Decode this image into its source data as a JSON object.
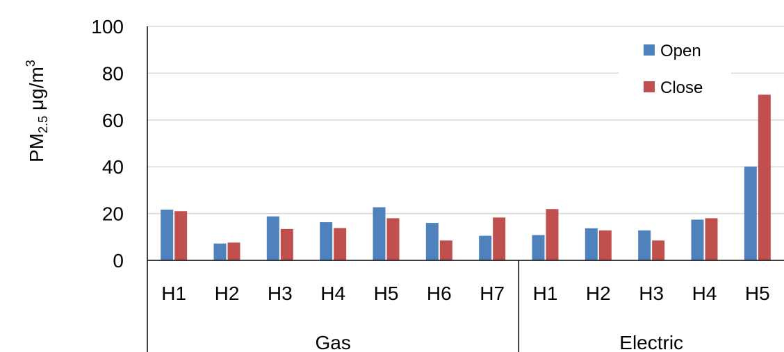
{
  "chart_data": {
    "type": "bar",
    "ylabel": {
      "main": "PM",
      "sub": "2.5",
      "unit": " μg/m",
      "sup": "3"
    },
    "ylim": [
      0,
      100
    ],
    "yticks": [
      0,
      20,
      40,
      60,
      80,
      100
    ],
    "grid": true,
    "legend_position": "top-right",
    "groups": [
      {
        "label": "Gas",
        "categories": [
          "H1",
          "H2",
          "H3",
          "H4",
          "H5",
          "H6",
          "H7"
        ]
      },
      {
        "label": "Electric",
        "categories": [
          "H1",
          "H2",
          "H3",
          "H4",
          "H5"
        ]
      }
    ],
    "series": [
      {
        "name": "Open",
        "color": "#4F81BD",
        "values": [
          21.7,
          7.2,
          18.8,
          16.3,
          22.7,
          16.0,
          10.5,
          10.8,
          13.7,
          12.8,
          17.4,
          40.1
        ]
      },
      {
        "name": "Close",
        "color": "#C0504D",
        "values": [
          21.0,
          7.6,
          13.4,
          13.8,
          18.0,
          8.5,
          18.3,
          21.9,
          12.8,
          8.5,
          18.0,
          70.8
        ]
      }
    ]
  }
}
